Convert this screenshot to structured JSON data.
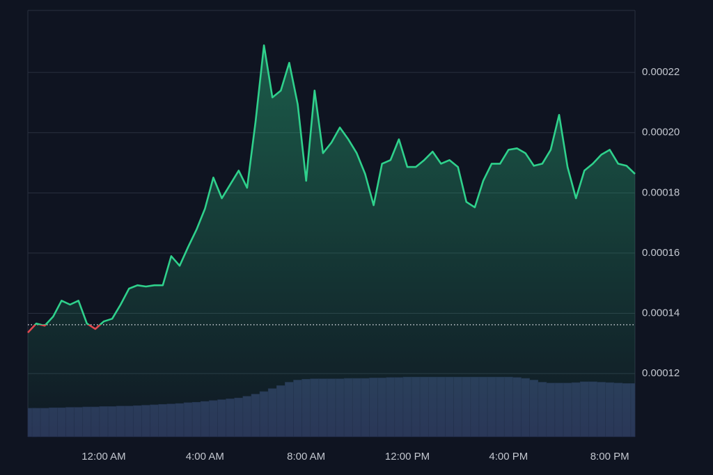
{
  "chart_data": {
    "type": "line",
    "categories": [
      null,
      null,
      null,
      null,
      null,
      null,
      null,
      null,
      null,
      "12:00 AM",
      null,
      null,
      null,
      null,
      null,
      null,
      null,
      null,
      null,
      null,
      null,
      "4:00 AM",
      null,
      null,
      null,
      null,
      null,
      null,
      null,
      null,
      null,
      null,
      null,
      "8:00 AM",
      null,
      null,
      null,
      null,
      null,
      null,
      null,
      null,
      null,
      null,
      null,
      "12:00 PM",
      null,
      null,
      null,
      null,
      null,
      null,
      null,
      null,
      null,
      null,
      null,
      "4:00 PM",
      null,
      null,
      null,
      null,
      null,
      null,
      null,
      null,
      null,
      null,
      null,
      "8:00 PM",
      null,
      null,
      null
    ],
    "values": [
      0.0001336,
      0.0001366,
      0.0001359,
      0.0001389,
      0.0001442,
      0.0001429,
      0.0001442,
      0.0001366,
      0.0001348,
      0.0001373,
      0.0001382,
      0.0001429,
      0.0001482,
      0.0001493,
      0.0001489,
      0.0001493,
      0.0001493,
      0.000159,
      0.0001558,
      0.000162,
      0.0001678,
      0.0001747,
      0.0001851,
      0.0001782,
      0.0001828,
      0.0001874,
      0.0001817,
      0.0002036,
      0.000229,
      0.0002117,
      0.000214,
      0.0002232,
      0.0002094,
      0.000184,
      0.000214,
      0.0001932,
      0.0001967,
      0.0002017,
      0.0001978,
      0.0001932,
      0.0001863,
      0.0001759,
      0.0001897,
      0.0001909,
      0.0001978,
      0.0001886,
      0.0001886,
      0.0001909,
      0.0001937,
      0.0001897,
      0.0001909,
      0.0001886,
      0.000177,
      0.0001752,
      0.000184,
      0.0001897,
      0.0001897,
      0.0001943,
      0.0001948,
      0.0001932,
      0.000189,
      0.0001897,
      0.0001943,
      0.0002059,
      0.0001886,
      0.0001782,
      0.0001874,
      0.0001897,
      0.0001927,
      0.0001943,
      0.0001897,
      0.000189,
      0.0001863
    ],
    "color": "#2fd18c",
    "below_color": "#e0484f",
    "reference_value": 0.0001362,
    "ylim": [
      9.9e-05,
      0.0002406
    ],
    "yticks": [
      0.00012,
      0.00014,
      0.00016,
      0.00018,
      {
        "value": 0.0002,
        "label": "0.00020"
      },
      0.00022
    ],
    "grid": true,
    "volume": [
      6.7,
      6.7,
      6.7,
      6.8,
      6.8,
      6.9,
      6.9,
      7.0,
      7.0,
      7.1,
      7.1,
      7.2,
      7.2,
      7.3,
      7.4,
      7.5,
      7.6,
      7.7,
      7.8,
      8.0,
      8.1,
      8.3,
      8.5,
      8.7,
      8.9,
      9.1,
      9.5,
      10.0,
      10.6,
      11.3,
      12.0,
      12.8,
      13.3,
      13.5,
      13.6,
      13.6,
      13.6,
      13.6,
      13.7,
      13.7,
      13.7,
      13.8,
      13.8,
      13.9,
      13.9,
      14.0,
      14.0,
      14.0,
      14.0,
      14.0,
      14.0,
      14.0,
      14.0,
      14.0,
      14.0,
      14.0,
      14.0,
      14.0,
      13.9,
      13.7,
      13.3,
      12.8,
      12.6,
      12.6,
      12.6,
      12.7,
      12.9,
      12.9,
      12.8,
      12.7,
      12.6,
      12.5,
      12.5
    ],
    "volume_color": "#2a3457",
    "y2lim": [
      0,
      100
    ]
  }
}
